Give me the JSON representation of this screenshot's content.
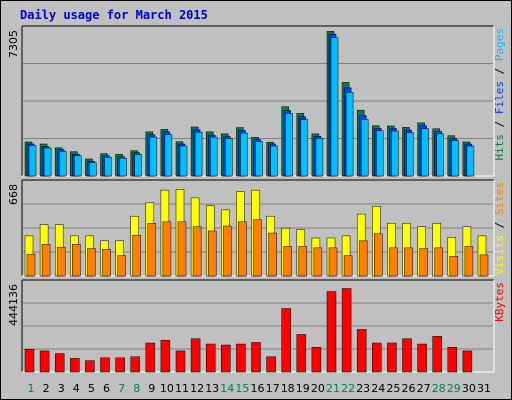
{
  "title": "Daily usage for March 2015",
  "right_labels": {
    "top": {
      "parts": [
        "Pages",
        "Files",
        "Hits"
      ],
      "colors": [
        "#00c0ff",
        "#0040ff",
        "#008040"
      ],
      "sep": " / "
    },
    "middle": {
      "parts": [
        "Sites",
        "Visits"
      ],
      "colors": [
        "#ff8000",
        "#ffff00"
      ],
      "sep": " / "
    },
    "bottom": {
      "parts": [
        "KBytes"
      ],
      "colors": [
        "#ff0000"
      ],
      "sep": ""
    }
  },
  "weekend_days": [
    "1",
    "7",
    "8",
    "14",
    "15",
    "21",
    "22",
    "28",
    "29"
  ],
  "colors": {
    "hits": "#008040",
    "files": "#0040ff",
    "pages": "#00c0ff",
    "visits": "#ffff00",
    "sites": "#ff8000",
    "kbytes": "#ff0000",
    "weekday": "#000000",
    "weekend": "#00805c",
    "grid": "#808080"
  },
  "chart_data": [
    {
      "type": "bar",
      "categories": [
        "1",
        "2",
        "3",
        "4",
        "5",
        "6",
        "7",
        "8",
        "9",
        "10",
        "11",
        "12",
        "13",
        "14",
        "15",
        "16",
        "17",
        "18",
        "19",
        "20",
        "21",
        "22",
        "23",
        "24",
        "25",
        "26",
        "27",
        "28",
        "29",
        "30",
        "31"
      ],
      "ymax_label": "7305",
      "ylim": [
        0,
        7305
      ],
      "grid": true,
      "series": [
        {
          "name": "Hits",
          "values": [
            1680,
            1580,
            1390,
            1200,
            840,
            1100,
            1070,
            1250,
            2180,
            2300,
            1690,
            2420,
            2180,
            2080,
            2390,
            1910,
            1670,
            3420,
            3090,
            2080,
            7140,
            4620,
            3250,
            2480,
            2470,
            2400,
            2620,
            2330,
            1990,
            1680,
            0
          ]
        },
        {
          "name": "Files",
          "values": [
            1580,
            1450,
            1300,
            1080,
            730,
            1000,
            950,
            1150,
            2040,
            2180,
            1580,
            2280,
            2020,
            1950,
            2250,
            1800,
            1580,
            3230,
            2920,
            1960,
            7000,
            4350,
            2980,
            2350,
            2350,
            2270,
            2480,
            2200,
            1850,
            1580,
            0
          ]
        },
        {
          "name": "Pages",
          "values": [
            1500,
            1380,
            1220,
            1000,
            660,
            920,
            880,
            1060,
            1920,
            2050,
            1480,
            2160,
            1920,
            1850,
            2120,
            1700,
            1480,
            3080,
            2780,
            1860,
            6830,
            4130,
            2800,
            2230,
            2220,
            2140,
            2330,
            2080,
            1750,
            1480,
            0
          ]
        }
      ]
    },
    {
      "type": "bar",
      "categories": [
        "1",
        "2",
        "3",
        "4",
        "5",
        "6",
        "7",
        "8",
        "9",
        "10",
        "11",
        "12",
        "13",
        "14",
        "15",
        "16",
        "17",
        "18",
        "19",
        "20",
        "21",
        "22",
        "23",
        "24",
        "25",
        "26",
        "27",
        "28",
        "29",
        "30",
        "31"
      ],
      "ymax_label": "668",
      "ylim": [
        0,
        668
      ],
      "grid": true,
      "series": [
        {
          "name": "Visits",
          "values": [
            285,
            365,
            365,
            285,
            285,
            250,
            250,
            425,
            520,
            610,
            615,
            555,
            500,
            470,
            600,
            610,
            425,
            340,
            330,
            270,
            270,
            285,
            440,
            495,
            375,
            375,
            350,
            375,
            275,
            350,
            285
          ]
        },
        {
          "name": "Sites",
          "values": [
            155,
            225,
            205,
            225,
            195,
            190,
            145,
            290,
            375,
            385,
            385,
            350,
            320,
            355,
            385,
            400,
            305,
            210,
            210,
            200,
            200,
            145,
            250,
            300,
            200,
            200,
            195,
            200,
            140,
            210,
            150
          ]
        }
      ]
    },
    {
      "type": "bar",
      "categories": [
        "1",
        "2",
        "3",
        "4",
        "5",
        "6",
        "7",
        "8",
        "9",
        "10",
        "11",
        "12",
        "13",
        "14",
        "15",
        "16",
        "17",
        "18",
        "19",
        "20",
        "21",
        "22",
        "23",
        "24",
        "25",
        "26",
        "27",
        "28",
        "29",
        "30",
        "31"
      ],
      "ymax_label": "444136",
      "ylim": [
        0,
        444136
      ],
      "grid": true,
      "series": [
        {
          "name": "KBytes",
          "values": [
            112000,
            104000,
            91000,
            67000,
            56000,
            70000,
            70000,
            75000,
            143000,
            157000,
            104000,
            164000,
            138000,
            133000,
            138000,
            146000,
            75000,
            313000,
            185000,
            122000,
            397000,
            412000,
            210000,
            143000,
            143000,
            164000,
            138000,
            176000,
            122000,
            104000,
            0
          ]
        }
      ]
    }
  ]
}
